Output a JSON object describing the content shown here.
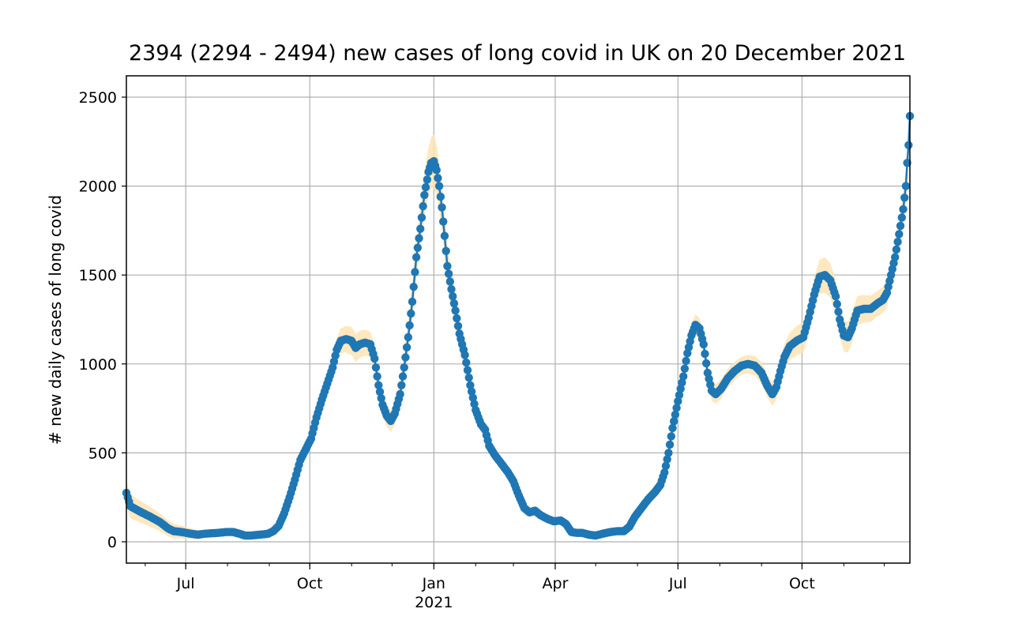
{
  "chart_data": {
    "type": "line",
    "title": "2394 (2294 - 2494) new cases of long covid in UK on 20 December 2021",
    "xlabel": "",
    "ylabel": "# new daily cases of long covid",
    "x_range": [
      "2020-05-18",
      "2021-12-20"
    ],
    "ylim": [
      -120,
      2620
    ],
    "yticks": [
      0,
      500,
      1000,
      1500,
      2000,
      2500
    ],
    "xticks": [
      {
        "date": "2020-07-01",
        "label": "Jul",
        "sublabel": ""
      },
      {
        "date": "2020-10-01",
        "label": "Oct",
        "sublabel": ""
      },
      {
        "date": "2021-01-01",
        "label": "Jan",
        "sublabel": "2021"
      },
      {
        "date": "2021-04-01",
        "label": "Apr",
        "sublabel": ""
      },
      {
        "date": "2021-07-01",
        "label": "Jul",
        "sublabel": ""
      },
      {
        "date": "2021-10-01",
        "label": "Oct",
        "sublabel": ""
      }
    ],
    "grid": true,
    "series": [
      {
        "color": "#1f77b4",
        "band_color": "#ffe4b5",
        "points": [
          [
            "2020-05-18",
            275
          ],
          [
            "2020-05-21",
            200
          ],
          [
            "2020-05-28",
            170
          ],
          [
            "2020-06-05",
            140
          ],
          [
            "2020-06-12",
            110
          ],
          [
            "2020-06-18",
            75
          ],
          [
            "2020-06-22",
            60
          ],
          [
            "2020-06-28",
            55
          ],
          [
            "2020-07-05",
            45
          ],
          [
            "2020-07-10",
            40
          ],
          [
            "2020-07-15",
            45
          ],
          [
            "2020-07-20",
            48
          ],
          [
            "2020-07-25",
            50
          ],
          [
            "2020-07-31",
            55
          ],
          [
            "2020-08-05",
            55
          ],
          [
            "2020-08-10",
            45
          ],
          [
            "2020-08-14",
            35
          ],
          [
            "2020-08-18",
            35
          ],
          [
            "2020-08-25",
            40
          ],
          [
            "2020-08-31",
            45
          ],
          [
            "2020-09-04",
            60
          ],
          [
            "2020-09-08",
            90
          ],
          [
            "2020-09-12",
            160
          ],
          [
            "2020-09-16",
            250
          ],
          [
            "2020-09-20",
            350
          ],
          [
            "2020-09-24",
            460
          ],
          [
            "2020-09-28",
            520
          ],
          [
            "2020-10-02",
            580
          ],
          [
            "2020-10-06",
            700
          ],
          [
            "2020-10-10",
            800
          ],
          [
            "2020-10-14",
            890
          ],
          [
            "2020-10-18",
            980
          ],
          [
            "2020-10-21",
            1080
          ],
          [
            "2020-10-24",
            1130
          ],
          [
            "2020-10-28",
            1140
          ],
          [
            "2020-11-01",
            1130
          ],
          [
            "2020-11-04",
            1090
          ],
          [
            "2020-11-07",
            1110
          ],
          [
            "2020-11-11",
            1120
          ],
          [
            "2020-11-15",
            1110
          ],
          [
            "2020-11-18",
            1030
          ],
          [
            "2020-11-21",
            880
          ],
          [
            "2020-11-24",
            770
          ],
          [
            "2020-11-27",
            710
          ],
          [
            "2020-11-30",
            680
          ],
          [
            "2020-12-03",
            720
          ],
          [
            "2020-12-07",
            830
          ],
          [
            "2020-12-10",
            980
          ],
          [
            "2020-12-13",
            1150
          ],
          [
            "2020-12-16",
            1350
          ],
          [
            "2020-12-19",
            1600
          ],
          [
            "2020-12-22",
            1760
          ],
          [
            "2020-12-25",
            1950
          ],
          [
            "2020-12-28",
            2080
          ],
          [
            "2020-12-30",
            2130
          ],
          [
            "2021-01-01",
            2140
          ],
          [
            "2021-01-03",
            2090
          ],
          [
            "2021-01-05",
            2000
          ],
          [
            "2021-01-07",
            1880
          ],
          [
            "2021-01-09",
            1720
          ],
          [
            "2021-01-11",
            1550
          ],
          [
            "2021-01-14",
            1420
          ],
          [
            "2021-01-17",
            1300
          ],
          [
            "2021-01-20",
            1170
          ],
          [
            "2021-01-24",
            1050
          ],
          [
            "2021-01-28",
            880
          ],
          [
            "2021-02-01",
            740
          ],
          [
            "2021-02-05",
            660
          ],
          [
            "2021-02-08",
            630
          ],
          [
            "2021-02-11",
            540
          ],
          [
            "2021-02-15",
            490
          ],
          [
            "2021-02-20",
            440
          ],
          [
            "2021-02-25",
            390
          ],
          [
            "2021-03-01",
            340
          ],
          [
            "2021-03-05",
            260
          ],
          [
            "2021-03-09",
            190
          ],
          [
            "2021-03-13",
            165
          ],
          [
            "2021-03-17",
            175
          ],
          [
            "2021-03-21",
            150
          ],
          [
            "2021-03-26",
            130
          ],
          [
            "2021-03-31",
            115
          ],
          [
            "2021-04-05",
            120
          ],
          [
            "2021-04-09",
            100
          ],
          [
            "2021-04-13",
            55
          ],
          [
            "2021-04-17",
            50
          ],
          [
            "2021-04-21",
            50
          ],
          [
            "2021-04-26",
            40
          ],
          [
            "2021-05-01",
            35
          ],
          [
            "2021-05-06",
            45
          ],
          [
            "2021-05-12",
            55
          ],
          [
            "2021-05-17",
            60
          ],
          [
            "2021-05-22",
            60
          ],
          [
            "2021-05-26",
            85
          ],
          [
            "2021-05-30",
            140
          ],
          [
            "2021-06-04",
            190
          ],
          [
            "2021-06-09",
            240
          ],
          [
            "2021-06-14",
            280
          ],
          [
            "2021-06-18",
            320
          ],
          [
            "2021-06-21",
            390
          ],
          [
            "2021-06-24",
            500
          ],
          [
            "2021-06-27",
            640
          ],
          [
            "2021-07-01",
            790
          ],
          [
            "2021-07-05",
            930
          ],
          [
            "2021-07-08",
            1060
          ],
          [
            "2021-07-11",
            1160
          ],
          [
            "2021-07-14",
            1220
          ],
          [
            "2021-07-17",
            1200
          ],
          [
            "2021-07-20",
            1110
          ],
          [
            "2021-07-23",
            950
          ],
          [
            "2021-07-26",
            850
          ],
          [
            "2021-07-29",
            830
          ],
          [
            "2021-08-02",
            860
          ],
          [
            "2021-08-07",
            920
          ],
          [
            "2021-08-12",
            960
          ],
          [
            "2021-08-17",
            990
          ],
          [
            "2021-08-22",
            1000
          ],
          [
            "2021-08-27",
            990
          ],
          [
            "2021-09-01",
            950
          ],
          [
            "2021-09-05",
            880
          ],
          [
            "2021-09-09",
            830
          ],
          [
            "2021-09-12",
            870
          ],
          [
            "2021-09-15",
            960
          ],
          [
            "2021-09-18",
            1040
          ],
          [
            "2021-09-22",
            1100
          ],
          [
            "2021-09-27",
            1130
          ],
          [
            "2021-10-02",
            1150
          ],
          [
            "2021-10-06",
            1260
          ],
          [
            "2021-10-10",
            1390
          ],
          [
            "2021-10-14",
            1490
          ],
          [
            "2021-10-18",
            1500
          ],
          [
            "2021-10-22",
            1470
          ],
          [
            "2021-10-26",
            1380
          ],
          [
            "2021-10-29",
            1250
          ],
          [
            "2021-11-01",
            1160
          ],
          [
            "2021-11-04",
            1150
          ],
          [
            "2021-11-07",
            1200
          ],
          [
            "2021-11-11",
            1300
          ],
          [
            "2021-11-16",
            1310
          ],
          [
            "2021-11-21",
            1310
          ],
          [
            "2021-11-26",
            1340
          ],
          [
            "2021-11-30",
            1360
          ],
          [
            "2021-12-03",
            1400
          ],
          [
            "2021-12-06",
            1500
          ],
          [
            "2021-12-09",
            1600
          ],
          [
            "2021-12-12",
            1730
          ],
          [
            "2021-12-15",
            1870
          ],
          [
            "2021-12-17",
            2000
          ],
          [
            "2021-12-18",
            2130
          ],
          [
            "2021-12-19",
            2230
          ],
          [
            "2021-12-20",
            2394
          ]
        ],
        "band_halfwidth": [
          [
            "2020-05-18",
            70
          ],
          [
            "2020-08-01",
            8
          ],
          [
            "2020-10-01",
            40
          ],
          [
            "2020-11-01",
            80
          ],
          [
            "2020-12-01",
            60
          ],
          [
            "2021-01-01",
            150
          ],
          [
            "2021-02-01",
            50
          ],
          [
            "2021-03-01",
            25
          ],
          [
            "2021-05-01",
            6
          ],
          [
            "2021-07-14",
            60
          ],
          [
            "2021-08-20",
            50
          ],
          [
            "2021-10-18",
            100
          ],
          [
            "2021-11-26",
            70
          ],
          [
            "2021-12-20",
            100
          ]
        ]
      }
    ]
  }
}
